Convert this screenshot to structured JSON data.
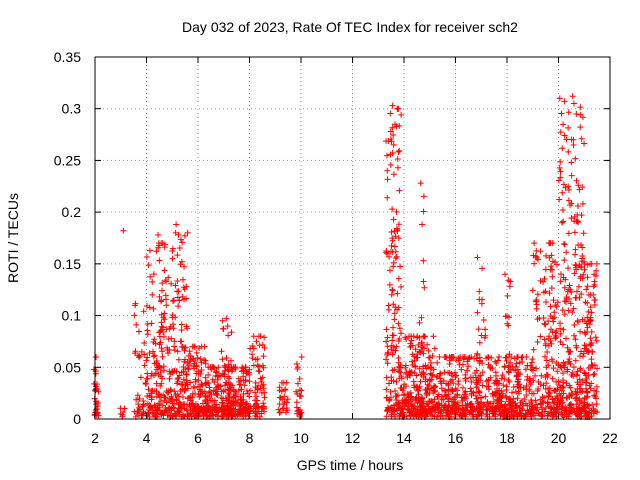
{
  "chart_data": {
    "type": "scatter",
    "title": "Day 032 of 2023, Rate Of TEC Index for receiver sch2",
    "xlabel": "GPS time / hours",
    "ylabel": "ROTI / TECUs",
    "xlim": [
      2,
      22
    ],
    "ylim": [
      0,
      0.35
    ],
    "xticks": [
      "2",
      "4",
      "6",
      "8",
      "10",
      "12",
      "14",
      "16",
      "18",
      "20",
      "22"
    ],
    "yticks": [
      "0",
      "0.05",
      "0.1",
      "0.15",
      "0.2",
      "0.25",
      "0.3",
      "0.35"
    ],
    "grid": true,
    "marker": "plus",
    "color": "#ff0000",
    "clusters": [
      {
        "x": [
          1.95,
          2.15
        ],
        "ymax": 0.06,
        "n": 30
      },
      {
        "x": [
          2.95,
          3.15
        ],
        "ymax": 0.02,
        "n": 6
      },
      {
        "x": [
          3.5,
          4.0
        ],
        "ymax": 0.12,
        "n": 40
      },
      {
        "x": [
          4.0,
          4.8
        ],
        "ymax": 0.17,
        "n": 160
      },
      {
        "x": [
          4.8,
          5.6
        ],
        "ymax": 0.18,
        "n": 160
      },
      {
        "x": [
          5.6,
          6.3
        ],
        "ymax": 0.07,
        "n": 120
      },
      {
        "x": [
          6.3,
          8.0
        ],
        "ymax": 0.05,
        "n": 260
      },
      {
        "x": [
          6.9,
          7.3
        ],
        "ymax": 0.095,
        "n": 40
      },
      {
        "x": [
          8.0,
          8.6
        ],
        "ymax": 0.08,
        "n": 70
      },
      {
        "x": [
          9.1,
          9.5
        ],
        "ymax": 0.035,
        "n": 25
      },
      {
        "x": [
          9.8,
          10.05
        ],
        "ymax": 0.06,
        "n": 25
      },
      {
        "x": [
          13.3,
          13.9
        ],
        "ymax": 0.3,
        "n": 160
      },
      {
        "x": [
          13.9,
          15.2
        ],
        "ymax": 0.08,
        "n": 240
      },
      {
        "x": [
          14.6,
          14.8
        ],
        "ymax": 0.23,
        "n": 20
      },
      {
        "x": [
          15.2,
          17.0
        ],
        "ymax": 0.06,
        "n": 260
      },
      {
        "x": [
          16.8,
          17.2
        ],
        "ymax": 0.16,
        "n": 35
      },
      {
        "x": [
          17.2,
          19.0
        ],
        "ymax": 0.06,
        "n": 260
      },
      {
        "x": [
          17.9,
          18.2
        ],
        "ymax": 0.14,
        "n": 30
      },
      {
        "x": [
          19.0,
          20.0
        ],
        "ymax": 0.17,
        "n": 180
      },
      {
        "x": [
          20.0,
          21.0
        ],
        "ymax": 0.31,
        "n": 260
      },
      {
        "x": [
          21.0,
          21.5
        ],
        "ymax": 0.15,
        "n": 120
      }
    ],
    "points": [
      {
        "x": 3.1,
        "y": 0.182
      },
      {
        "x": 13.55,
        "y": 0.303
      },
      {
        "x": 13.65,
        "y": 0.285
      },
      {
        "x": 13.6,
        "y": 0.265
      },
      {
        "x": 14.65,
        "y": 0.228
      },
      {
        "x": 14.7,
        "y": 0.188
      },
      {
        "x": 14.75,
        "y": 0.153
      },
      {
        "x": 20.55,
        "y": 0.312
      },
      {
        "x": 20.6,
        "y": 0.305
      },
      {
        "x": 20.58,
        "y": 0.27
      },
      {
        "x": 20.5,
        "y": 0.248
      },
      {
        "x": 20.95,
        "y": 0.208
      },
      {
        "x": 21.35,
        "y": 0.12
      },
      {
        "x": 5.15,
        "y": 0.188
      },
      {
        "x": 4.45,
        "y": 0.178
      },
      {
        "x": 7.1,
        "y": 0.097
      }
    ]
  }
}
